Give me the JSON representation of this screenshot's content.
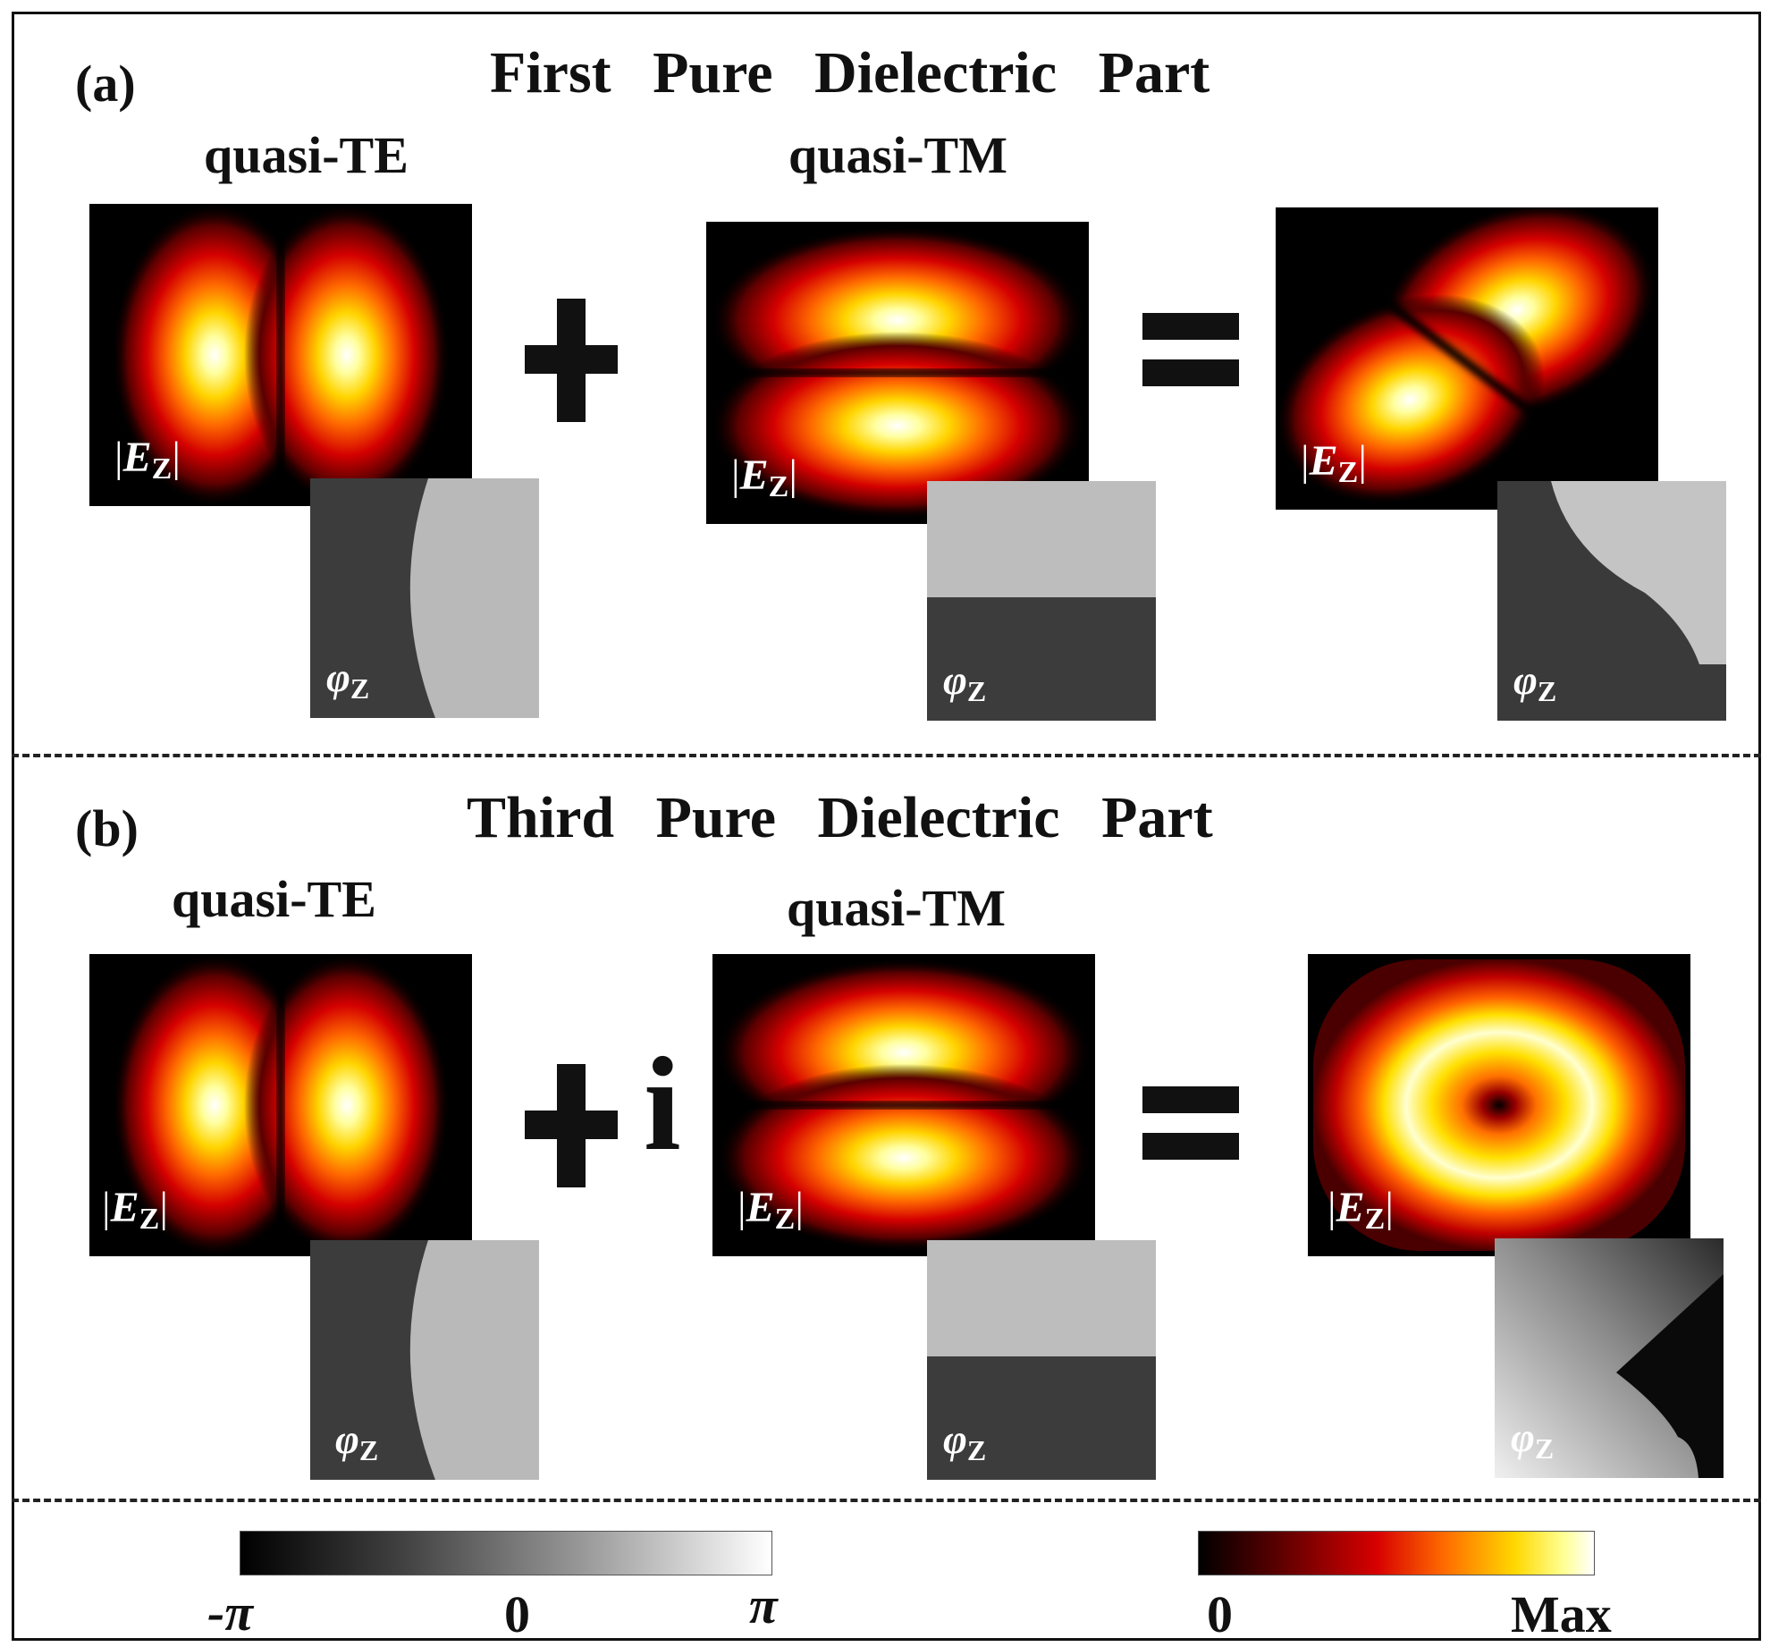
{
  "panels": [
    {
      "label": "(a)",
      "title": "First Pure Dielectric Part",
      "te_label": "quasi-TE",
      "tm_label": "quasi-TM",
      "field_symbol": "E",
      "field_subscript": "Z",
      "phase_symbol": "φ",
      "phase_subscript": "Z",
      "operator_plus": "+",
      "operator_equals": "=",
      "imaginary_unit": ""
    },
    {
      "label": "(b)",
      "title": "Third Pure Dielectric Part",
      "te_label": "quasi-TE",
      "tm_label": "quasi-TM",
      "field_symbol": "E",
      "field_subscript": "Z",
      "phase_symbol": "φ",
      "phase_subscript": "Z",
      "operator_plus": "+",
      "operator_equals": "=",
      "imaginary_unit": "i"
    }
  ],
  "colorbars": {
    "phase": {
      "min_label": "-π",
      "mid_label": "0",
      "max_label": "π"
    },
    "amplitude": {
      "min_label": "0",
      "max_label": "Max"
    }
  },
  "colors": {
    "hot_map": [
      "#000000",
      "#5a0000",
      "#d70000",
      "#ff6a00",
      "#ffd800",
      "#ffff90",
      "#ffffff"
    ],
    "phase_low": "#3a3a3a",
    "phase_high": "#bdbdbd"
  }
}
